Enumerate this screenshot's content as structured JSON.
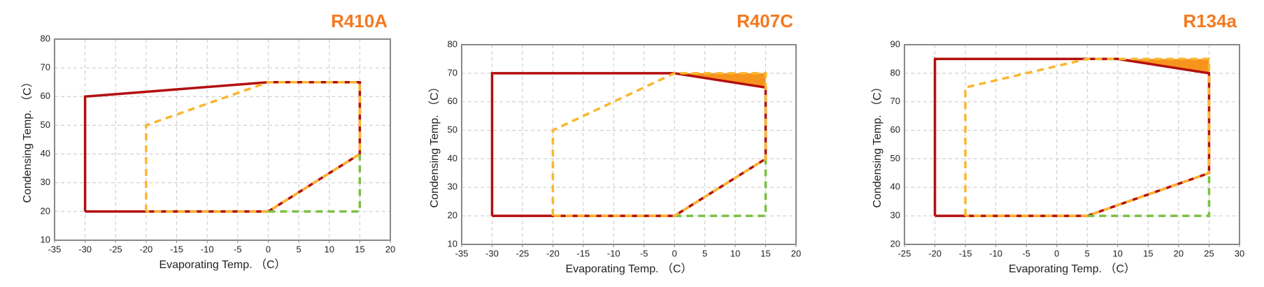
{
  "chart_data": [
    {
      "type": "line",
      "title": "R410A",
      "x_label": "Evaporating Temp. （C）",
      "y_label": "Condensing Temp. （C）",
      "xlim": [
        -35,
        20
      ],
      "xticks": [
        -35,
        -30,
        -25,
        -20,
        -15,
        -10,
        -5,
        0,
        5,
        10,
        15,
        20
      ],
      "ylim": [
        10,
        80
      ],
      "yticks": [
        10,
        20,
        30,
        40,
        50,
        60,
        70,
        80
      ],
      "grid": true,
      "series": [
        {
          "color": "#b30f0f",
          "dash": false,
          "x": [
            -30,
            -30,
            0,
            15,
            15,
            0,
            -30
          ],
          "values": [
            20,
            60,
            65,
            65,
            40,
            20,
            20
          ]
        },
        {
          "color": "#7ac143",
          "dash": true,
          "x": [
            0,
            15,
            15
          ],
          "values": [
            20,
            20,
            40
          ]
        },
        {
          "color": "#fbb62e",
          "dash": true,
          "x": [
            -20,
            -20,
            0,
            15,
            15,
            0,
            -20
          ],
          "values": [
            20,
            50,
            65,
            65,
            40,
            20,
            20
          ]
        }
      ]
    },
    {
      "type": "line",
      "title": "R407C",
      "x_label": "Evaporating Temp. （C）",
      "y_label": "Condensing Temp. （C）",
      "xlim": [
        -35,
        20
      ],
      "xticks": [
        -35,
        -30,
        -25,
        -20,
        -15,
        -10,
        -5,
        0,
        5,
        10,
        15,
        20
      ],
      "ylim": [
        10,
        80
      ],
      "yticks": [
        10,
        20,
        30,
        40,
        50,
        60,
        70,
        80
      ],
      "grid": true,
      "areas": [
        {
          "color": "#f7941d",
          "x": [
            0,
            15,
            15
          ],
          "values": [
            70,
            70,
            65
          ]
        }
      ],
      "series": [
        {
          "color": "#b30f0f",
          "dash": false,
          "x": [
            -30,
            -30,
            0,
            15,
            15,
            0,
            -30
          ],
          "values": [
            20,
            70,
            70,
            65,
            40,
            20,
            20
          ]
        },
        {
          "color": "#7ac143",
          "dash": true,
          "x": [
            0,
            15,
            15
          ],
          "values": [
            20,
            20,
            40
          ]
        },
        {
          "color": "#fbb62e",
          "dash": true,
          "x": [
            -20,
            -20,
            0,
            15,
            15,
            0,
            -20
          ],
          "values": [
            20,
            50,
            70,
            70,
            40,
            20,
            20
          ]
        }
      ]
    },
    {
      "type": "line",
      "title": "R134a",
      "x_label": "Evaporating Temp. （C）",
      "y_label": "Condensing Temp. （C）",
      "xlim": [
        -25,
        30
      ],
      "xticks": [
        -25,
        -20,
        -15,
        -10,
        -5,
        0,
        5,
        10,
        15,
        20,
        25,
        30
      ],
      "ylim": [
        20,
        90
      ],
      "yticks": [
        20,
        30,
        40,
        50,
        60,
        70,
        80,
        90
      ],
      "grid": true,
      "areas": [
        {
          "color": "#f7941d",
          "x": [
            10,
            25,
            25
          ],
          "values": [
            85,
            85,
            80
          ]
        }
      ],
      "series": [
        {
          "color": "#b30f0f",
          "dash": false,
          "x": [
            -20,
            -20,
            10,
            25,
            25,
            5,
            -20
          ],
          "values": [
            30,
            85,
            85,
            80,
            45,
            30,
            30
          ]
        },
        {
          "color": "#7ac143",
          "dash": true,
          "x": [
            5,
            25,
            25
          ],
          "values": [
            30,
            30,
            45
          ]
        },
        {
          "color": "#fbb62e",
          "dash": true,
          "x": [
            -15,
            -15,
            5,
            25,
            25,
            5,
            -15
          ],
          "values": [
            30,
            75,
            85,
            85,
            45,
            30,
            30
          ]
        }
      ]
    }
  ]
}
